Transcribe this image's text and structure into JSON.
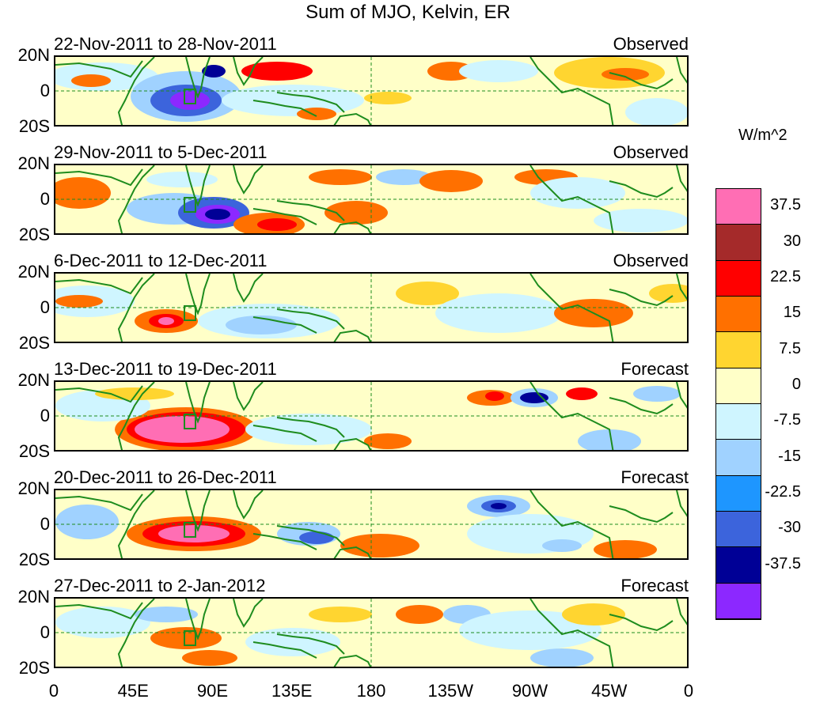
{
  "title": "Sum of MJO, Kelvin, ER",
  "units": "W/m^2",
  "lat_labels": [
    "20N",
    "0",
    "20S"
  ],
  "lon_labels": [
    "0",
    "45E",
    "90E",
    "135E",
    "180",
    "135W",
    "90W",
    "45W",
    "0"
  ],
  "panels": [
    {
      "dates": "22-Nov-2011 to 28-Nov-2011",
      "kind": "Observed"
    },
    {
      "dates": "29-Nov-2011 to 5-Dec-2011",
      "kind": "Observed"
    },
    {
      "dates": "6-Dec-2011 to 12-Dec-2011",
      "kind": "Observed"
    },
    {
      "dates": "13-Dec-2011 to 19-Dec-2011",
      "kind": "Forecast"
    },
    {
      "dates": "20-Dec-2011 to 26-Dec-2011",
      "kind": "Forecast"
    },
    {
      "dates": "27-Dec-2011 to 2-Jan-2012",
      "kind": "Forecast"
    }
  ],
  "colorbar": {
    "colors": [
      "#ff6eb4",
      "#a52a2a",
      "#ff0000",
      "#ff7000",
      "#ffd530",
      "#ffffc8",
      "#cff5ff",
      "#a0d2ff",
      "#1e96ff",
      "#3c64dc",
      "#000096",
      "#8c28ff"
    ],
    "ticks": [
      "37.5",
      "30",
      "22.5",
      "15",
      "7.5",
      "0",
      "-7.5",
      "-15",
      "-22.5",
      "-30",
      "-37.5"
    ]
  },
  "colors": {
    "coast": "#1e8c1e",
    "box": "#1e8c1e"
  }
}
